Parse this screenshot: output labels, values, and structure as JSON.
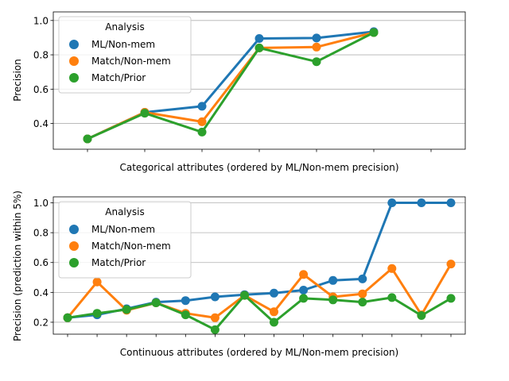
{
  "colors": {
    "ML/Non-mem": "#1f77b4",
    "Match/Non-mem": "#ff7f0e",
    "Match/Prior": "#2ca02c",
    "grid": "#b0b0b0",
    "legend_border": "#cccccc"
  },
  "chart_data": [
    {
      "type": "line",
      "id": "top",
      "title": "",
      "xlabel": "Categorical attributes (ordered by ML/Non-mem precision)",
      "ylabel": "Precision",
      "ylim": [
        0.25,
        1.05
      ],
      "yticks": [
        0.4,
        0.6,
        0.8,
        1.0
      ],
      "ytick_labels": [
        "0.4",
        "0.6",
        "0.8",
        "1.0"
      ],
      "grid": "horizontal",
      "n_points": 7,
      "legend": {
        "title": "Analysis",
        "position": "upper-left"
      },
      "series": [
        {
          "name": "ML/Non-mem",
          "values": [
            0.31,
            0.465,
            0.5,
            0.895,
            0.898,
            0.935,
            null
          ]
        },
        {
          "name": "Match/Non-mem",
          "values": [
            0.31,
            0.465,
            0.41,
            0.84,
            0.845,
            0.93,
            null
          ]
        },
        {
          "name": "Match/Prior",
          "values": [
            0.31,
            0.46,
            0.35,
            0.84,
            0.76,
            0.93,
            null
          ]
        }
      ]
    },
    {
      "type": "line",
      "id": "bottom",
      "title": "",
      "xlabel": "Continuous attributes (ordered by ML/Non-mem precision)",
      "ylabel": "Precision (prediction within 5%)",
      "ylim": [
        0.12,
        1.04
      ],
      "yticks": [
        0.2,
        0.4,
        0.6,
        0.8,
        1.0
      ],
      "ytick_labels": [
        "0.2",
        "0.4",
        "0.6",
        "0.8",
        "1.0"
      ],
      "grid": "horizontal",
      "n_points": 14,
      "legend": {
        "title": "Analysis",
        "position": "upper-left"
      },
      "series": [
        {
          "name": "ML/Non-mem",
          "values": [
            0.23,
            0.25,
            0.29,
            0.335,
            0.345,
            0.37,
            0.385,
            0.395,
            0.415,
            0.48,
            0.49,
            1.0,
            1.0,
            1.0
          ]
        },
        {
          "name": "Match/Non-mem",
          "values": [
            0.23,
            0.47,
            0.28,
            0.33,
            0.26,
            0.23,
            0.38,
            0.27,
            0.52,
            0.37,
            0.39,
            0.56,
            0.25,
            0.59
          ]
        },
        {
          "name": "Match/Prior",
          "values": [
            0.23,
            0.26,
            0.285,
            0.33,
            0.25,
            0.15,
            0.38,
            0.2,
            0.36,
            0.35,
            0.335,
            0.365,
            0.245,
            0.36
          ]
        }
      ]
    }
  ]
}
